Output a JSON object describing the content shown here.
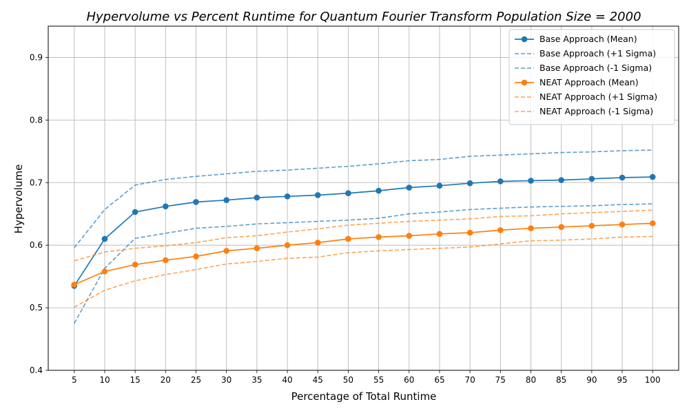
{
  "chart_data": {
    "type": "line",
    "title": "Hypervolume vs Percent Runtime for Quantum Fourier Transform Population Size = 2000",
    "xlabel": "Percentage of Total Runtime",
    "ylabel": "Hypervolume",
    "ylim": [
      0.4,
      0.95
    ],
    "yticks": [
      "0.4",
      "0.5",
      "0.6",
      "0.7",
      "0.8",
      "0.9"
    ],
    "x": [
      5,
      10,
      15,
      20,
      25,
      30,
      35,
      40,
      45,
      50,
      55,
      60,
      65,
      70,
      75,
      80,
      85,
      90,
      95,
      100
    ],
    "grid": true,
    "legend_position": "top-right",
    "series": [
      {
        "name": "Base Approach (Mean)",
        "color": "#1f77b4",
        "style": "solid-marker",
        "values": [
          0.535,
          0.61,
          0.653,
          0.662,
          0.669,
          0.672,
          0.676,
          0.678,
          0.68,
          0.683,
          0.687,
          0.692,
          0.695,
          0.699,
          0.702,
          0.703,
          0.704,
          0.706,
          0.708,
          0.709
        ]
      },
      {
        "name": "Base Approach (+1 Sigma)",
        "color": "#1f77b4",
        "style": "dashed",
        "values": [
          0.596,
          0.657,
          0.696,
          0.705,
          0.71,
          0.714,
          0.718,
          0.72,
          0.723,
          0.726,
          0.73,
          0.735,
          0.737,
          0.742,
          0.744,
          0.746,
          0.748,
          0.749,
          0.751,
          0.752
        ]
      },
      {
        "name": "Base Approach (-1 Sigma)",
        "color": "#1f77b4",
        "style": "dashed",
        "values": [
          0.475,
          0.563,
          0.611,
          0.619,
          0.627,
          0.63,
          0.634,
          0.636,
          0.638,
          0.64,
          0.643,
          0.65,
          0.653,
          0.657,
          0.659,
          0.661,
          0.662,
          0.663,
          0.665,
          0.666
        ]
      },
      {
        "name": "NEAT Approach (Mean)",
        "color": "#ff7f0e",
        "style": "solid-marker",
        "values": [
          0.537,
          0.558,
          0.569,
          0.576,
          0.582,
          0.591,
          0.595,
          0.6,
          0.604,
          0.61,
          0.613,
          0.615,
          0.618,
          0.62,
          0.624,
          0.627,
          0.629,
          0.631,
          0.633,
          0.635
        ]
      },
      {
        "name": "NEAT Approach (+1 Sigma)",
        "color": "#ff7f0e",
        "style": "dashed",
        "values": [
          0.575,
          0.589,
          0.595,
          0.599,
          0.604,
          0.612,
          0.615,
          0.621,
          0.626,
          0.632,
          0.635,
          0.638,
          0.64,
          0.642,
          0.646,
          0.647,
          0.65,
          0.652,
          0.654,
          0.656
        ]
      },
      {
        "name": "NEAT Approach (-1 Sigma)",
        "color": "#ff7f0e",
        "style": "dashed",
        "values": [
          0.501,
          0.528,
          0.543,
          0.553,
          0.561,
          0.57,
          0.574,
          0.579,
          0.581,
          0.588,
          0.591,
          0.593,
          0.595,
          0.597,
          0.602,
          0.607,
          0.608,
          0.61,
          0.613,
          0.614
        ]
      }
    ]
  }
}
